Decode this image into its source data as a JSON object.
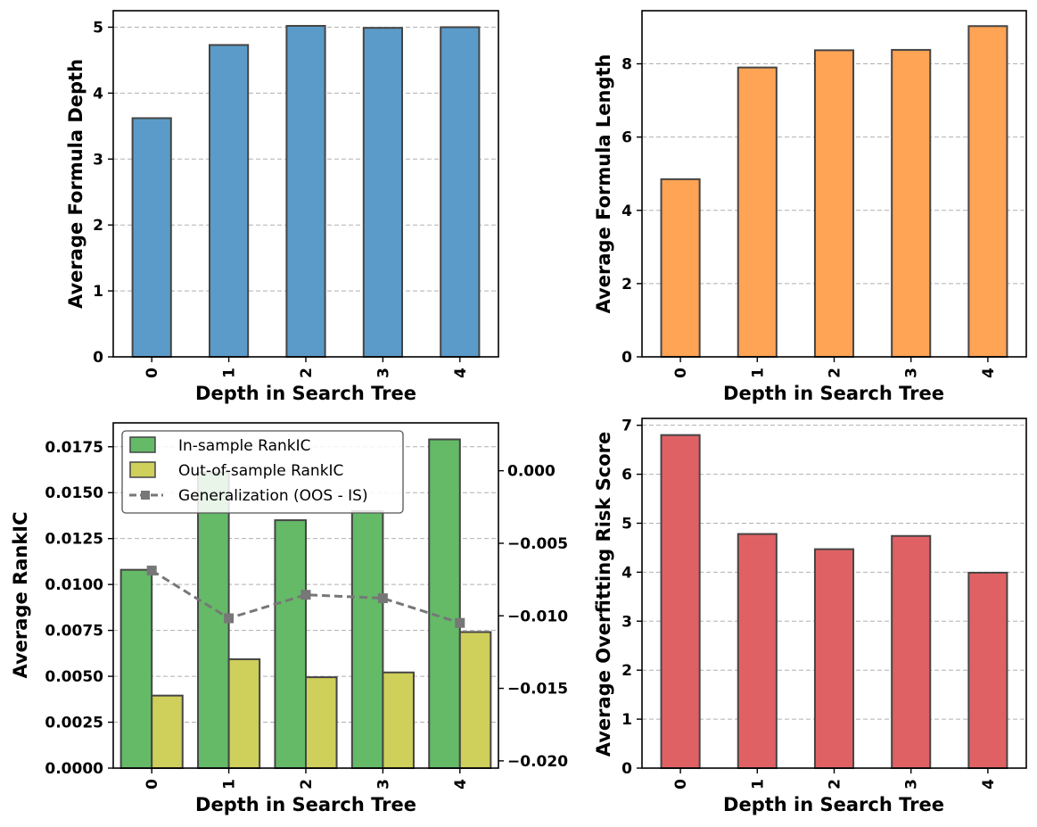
{
  "colors": {
    "blue": "#5b9bc9",
    "orange": "#ffa354",
    "green": "#64ba67",
    "yellow": "#cfcf5b",
    "red": "#e06164",
    "edge": "#454545",
    "grid": "#b0b0b0",
    "gen_line": "#777777"
  },
  "chart_data": [
    {
      "type": "bar",
      "categories": [
        "0",
        "1",
        "2",
        "3",
        "4"
      ],
      "values": [
        3.62,
        4.73,
        5.02,
        4.99,
        5.0
      ],
      "xlabel": "Depth in Search Tree",
      "ylabel": "Average Formula Depth",
      "ylim": [
        0,
        5.25
      ],
      "yticks": [
        "0",
        "1",
        "2",
        "3",
        "4",
        "5"
      ],
      "grid": true
    },
    {
      "type": "bar",
      "categories": [
        "0",
        "1",
        "2",
        "3",
        "4"
      ],
      "values": [
        4.85,
        7.9,
        8.37,
        8.38,
        9.03
      ],
      "xlabel": "Depth in Search Tree",
      "ylabel": "Average Formula Length",
      "ylim": [
        0,
        9.45
      ],
      "yticks": [
        "0",
        "2",
        "4",
        "6",
        "8"
      ],
      "grid": true
    },
    {
      "type": "bar",
      "categories": [
        "0",
        "1",
        "2",
        "3",
        "4"
      ],
      "series": [
        {
          "name": "In-sample RankIC",
          "values": [
            0.0108,
            0.0161,
            0.0135,
            0.014,
            0.0179
          ]
        },
        {
          "name": "Out-of-sample RankIC",
          "values": [
            0.00395,
            0.00593,
            0.00495,
            0.00521,
            0.00741
          ]
        },
        {
          "name": "Generalization (OOS - IS)",
          "axis": "right",
          "type": "line",
          "values": [
            -0.00688,
            -0.01017,
            -0.00855,
            -0.00879,
            -0.01049
          ]
        }
      ],
      "xlabel": "Depth in Search Tree",
      "ylabel": "Average RankIC",
      "ylim": [
        0,
        0.0188
      ],
      "yticks": [
        "0.0000",
        "0.0025",
        "0.0050",
        "0.0075",
        "0.0100",
        "0.0125",
        "0.0150",
        "0.0175"
      ],
      "y2lim": [
        -0.0205,
        0.0033
      ],
      "y2ticks": [
        "−0.020",
        "−0.015",
        "−0.010",
        "−0.005",
        "0.000"
      ],
      "legend": "top-left",
      "grid": true
    },
    {
      "type": "bar",
      "categories": [
        "0",
        "1",
        "2",
        "3",
        "4"
      ],
      "values": [
        6.8,
        4.78,
        4.47,
        4.74,
        3.99
      ],
      "xlabel": "Depth in Search Tree",
      "ylabel": "Average Overfitting Risk Score",
      "ylim": [
        0,
        7.14
      ],
      "yticks": [
        "0",
        "1",
        "2",
        "3",
        "4",
        "5",
        "6",
        "7"
      ],
      "grid": true
    }
  ]
}
